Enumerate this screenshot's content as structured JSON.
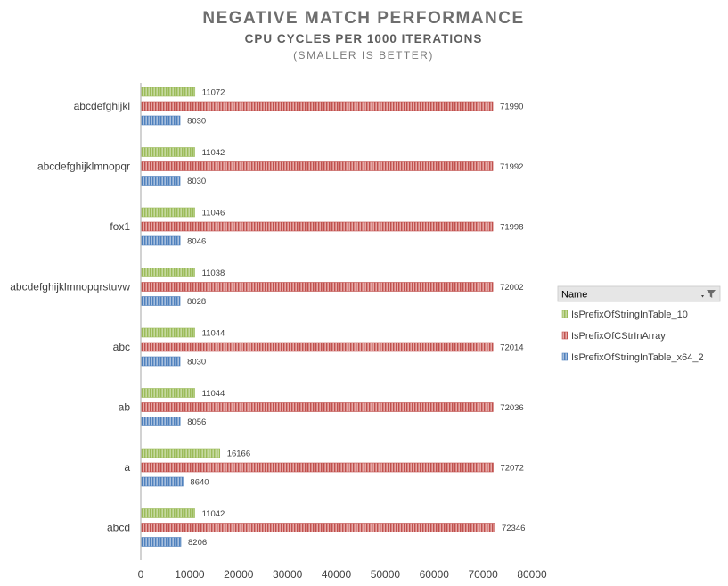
{
  "colors": {
    "green": "#9bbb59",
    "red": "#c0504d",
    "blue": "#4f81bd",
    "axis": "#a6a6a6"
  },
  "legend": {
    "title": "Name",
    "filter_icon": "filter-icon"
  },
  "chart_data": {
    "type": "bar",
    "orientation": "horizontal",
    "title": "NEGATIVE MATCH PERFORMANCE",
    "subtitle": "CPU CYCLES PER 1000 ITERATIONS",
    "note": "(SMALLER IS BETTER)",
    "categories": [
      "abcdefghijkl",
      "abcdefghijklmnopqr",
      "fox1",
      "abcdefghijklmnopqrstuvw",
      "abc",
      "ab",
      "a",
      "abcd"
    ],
    "series": [
      {
        "name": "IsPrefixOfStringInTable_10",
        "color": "#9bbb59",
        "values": [
          11072,
          11042,
          11046,
          11038,
          11044,
          11044,
          16166,
          11042
        ]
      },
      {
        "name": "IsPrefixOfCStrInArray",
        "color": "#c0504d",
        "values": [
          71990,
          71992,
          71998,
          72002,
          72014,
          72036,
          72072,
          72346
        ]
      },
      {
        "name": "IsPrefixOfStringInTable_x64_2",
        "color": "#4f81bd",
        "values": [
          8030,
          8030,
          8046,
          8028,
          8030,
          8056,
          8640,
          8206
        ]
      }
    ],
    "xlim": [
      0,
      80000
    ],
    "xticks": [
      0,
      10000,
      20000,
      30000,
      40000,
      50000,
      60000,
      70000,
      80000
    ],
    "xlabel": "",
    "ylabel": "",
    "grid": false,
    "legend_position": "right"
  }
}
